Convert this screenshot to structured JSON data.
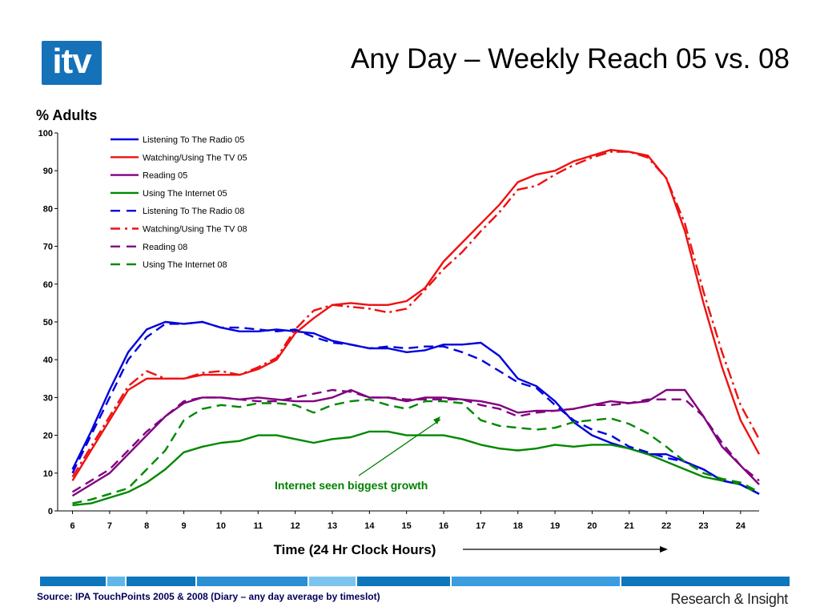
{
  "header": {
    "logo_text": "itv",
    "title": "Any Day – Weekly Reach 05 vs. 08"
  },
  "footer": {
    "source": "Source: IPA TouchPoints 2005 &  2008 (Diary – any day average by timeslot)",
    "brand": "Research & Insight",
    "strip_colors": [
      "#0e76bc",
      "#5fb6e8",
      "#0e76bc",
      "#2a8fd4",
      "#7cc4ee",
      "#0e76bc",
      "#3a9de0",
      "#0e76bc"
    ]
  },
  "chart_data": {
    "type": "line",
    "ylabel": "% Adults",
    "xlabel": "Time (24 Hr Clock Hours)",
    "ylim": [
      0,
      100
    ],
    "yticks": [
      0,
      10,
      20,
      30,
      40,
      50,
      60,
      70,
      80,
      90,
      100
    ],
    "xlim": [
      6,
      24.5
    ],
    "xticks": [
      6,
      7,
      8,
      9,
      10,
      11,
      12,
      13,
      14,
      15,
      16,
      17,
      18,
      19,
      20,
      21,
      22,
      23,
      24
    ],
    "grid": false,
    "legend_position": "top-left",
    "annotation": {
      "text": "Internet seen biggest growth",
      "color": "#008000",
      "points_to": [
        16,
        25
      ]
    },
    "x": [
      6,
      6.5,
      7,
      7.5,
      8,
      8.5,
      9,
      9.5,
      10,
      10.5,
      11,
      11.5,
      12,
      12.5,
      13,
      13.5,
      14,
      14.5,
      15,
      15.5,
      16,
      16.5,
      17,
      17.5,
      18,
      18.5,
      19,
      19.5,
      20,
      20.5,
      21,
      21.5,
      22,
      22.5,
      23,
      23.5,
      24,
      24.5
    ],
    "series": [
      {
        "name": "Listening To The Radio 05",
        "color": "#0000dd",
        "dash": "solid",
        "values": [
          11,
          21,
          32,
          42,
          48,
          50,
          49.5,
          50,
          48.5,
          47.5,
          47.5,
          48,
          47.5,
          47,
          45,
          44,
          43,
          43,
          42,
          42.5,
          44,
          44,
          44.5,
          41,
          35,
          33,
          29,
          23.5,
          20,
          18,
          16.5,
          15,
          15,
          13,
          11,
          8,
          7,
          4.5
        ]
      },
      {
        "name": "Watching/Using The TV 05",
        "color": "#ee1111",
        "dash": "solid",
        "values": [
          8,
          16,
          24,
          32,
          35,
          35,
          35,
          36,
          36,
          36,
          37.5,
          40,
          47,
          51,
          54.5,
          55,
          54.5,
          54.5,
          55.5,
          59,
          66,
          71,
          76,
          81,
          87,
          89,
          90,
          92.5,
          94,
          95.5,
          95,
          94,
          88,
          74,
          55,
          38,
          24,
          15
        ]
      },
      {
        "name": "Reading 05",
        "color": "#800080",
        "dash": "solid",
        "values": [
          4,
          7,
          10,
          15,
          20,
          25,
          28.5,
          30,
          30,
          29.5,
          30,
          29.5,
          29,
          29,
          30,
          32,
          30,
          30,
          29,
          30,
          30,
          29.5,
          29,
          28,
          26,
          26.5,
          26.5,
          27,
          28,
          29,
          28.5,
          29,
          32,
          32,
          25,
          17,
          12,
          7
        ]
      },
      {
        "name": "Using The Internet 05",
        "color": "#008800",
        "dash": "solid",
        "values": [
          1.5,
          2,
          3.5,
          5,
          7.5,
          11,
          15.5,
          17,
          18,
          18.5,
          20,
          20,
          19,
          18,
          19,
          19.5,
          21,
          21,
          20,
          20,
          20,
          19,
          17.5,
          16.5,
          16,
          16.5,
          17.5,
          17,
          17.5,
          17.5,
          16.5,
          15,
          13,
          11,
          9,
          8,
          7,
          4.5
        ]
      },
      {
        "name": "Listening To The Radio 08",
        "color": "#0000dd",
        "dash": "dash",
        "values": [
          10,
          20,
          30,
          40,
          46,
          49.5,
          49.5,
          50,
          48.5,
          48.5,
          48,
          47.5,
          48,
          46,
          44.5,
          44,
          43,
          43.5,
          43,
          43.5,
          43.5,
          42,
          40,
          37,
          34,
          32.5,
          28,
          24,
          21.5,
          20,
          17,
          15.5,
          14,
          13,
          11,
          8,
          7,
          4.5
        ]
      },
      {
        "name": "Watching/Using The TV 08",
        "color": "#ee1111",
        "dash": "dashdot",
        "values": [
          9,
          17,
          25,
          33,
          37,
          35,
          35,
          36.5,
          37,
          36,
          38,
          40.5,
          48,
          53,
          54.5,
          54,
          53.5,
          52.5,
          53.5,
          58.5,
          64,
          68.5,
          74,
          79,
          85,
          86,
          89,
          91.5,
          93.5,
          95,
          95,
          93.5,
          88,
          76,
          58,
          42,
          28,
          19
        ]
      },
      {
        "name": "Reading 08",
        "color": "#800080",
        "dash": "dash",
        "values": [
          5,
          8,
          11,
          16,
          21,
          25,
          29,
          30,
          30,
          29.5,
          29,
          29,
          30,
          31,
          32,
          31.5,
          30,
          30,
          29.5,
          29.5,
          29.5,
          29.5,
          28,
          27,
          25,
          26,
          26.5,
          27,
          28,
          28,
          28.5,
          29.5,
          29.5,
          29.5,
          25,
          18,
          12,
          8
        ]
      },
      {
        "name": "Using The Internet 08",
        "color": "#008800",
        "dash": "dash",
        "values": [
          2,
          3,
          4.5,
          6,
          11,
          16,
          24,
          27,
          28,
          27.5,
          28.5,
          28.5,
          28,
          26,
          28,
          29,
          29.5,
          28,
          27,
          29,
          29,
          28.5,
          24,
          22.5,
          22,
          21.5,
          22,
          23.5,
          24,
          24.5,
          23,
          20.5,
          17,
          13,
          10,
          8.5,
          7.5,
          5
        ]
      }
    ]
  }
}
